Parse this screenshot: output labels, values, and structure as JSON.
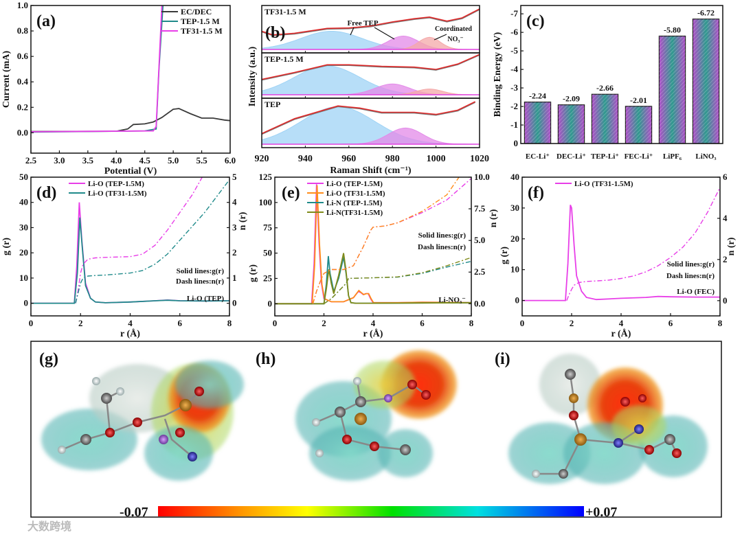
{
  "chart_data": [
    {
      "panel_label": "(a)",
      "type": "line",
      "xlabel": "Potential (V)",
      "ylabel": "Current (mA)",
      "xlim": [
        2.5,
        6.0
      ],
      "ylim": [
        -0.16,
        1.0
      ],
      "xticks": [
        2.5,
        3.0,
        3.5,
        4.0,
        4.5,
        5.0,
        5.5,
        6.0
      ],
      "xtick_labels": [
        "2.5",
        "3.0",
        "3.5",
        "4.0",
        "4.5",
        "5.0",
        "5.5",
        "6.0"
      ],
      "yticks": [
        0,
        0.2,
        0.4,
        0.6,
        0.8,
        1.0
      ],
      "ytick_labels": [
        "0.0",
        "0.2",
        "0.4",
        "0.6",
        "0.8",
        "1.0"
      ],
      "legend_position": "top-right",
      "series": [
        {
          "name": "EC/DEC",
          "color": "#3a3a3a",
          "x": [
            2.5,
            4.0,
            4.2,
            4.3,
            4.5,
            4.65,
            4.8,
            5.0,
            5.1,
            5.3,
            5.5,
            5.7,
            5.9,
            6.0
          ],
          "y": [
            0.01,
            0.012,
            0.03,
            0.065,
            0.07,
            0.085,
            0.12,
            0.185,
            0.19,
            0.15,
            0.115,
            0.115,
            0.1,
            0.095
          ]
        },
        {
          "name": "TEP-1.5 M",
          "color": "#1f8a8a",
          "x": [
            2.5,
            4.5,
            4.7,
            4.75,
            4.82
          ],
          "y": [
            0.005,
            0.015,
            0.03,
            0.5,
            1.0
          ]
        },
        {
          "name": "TF31-1.5 M",
          "color": "#e83ee8",
          "x": [
            2.5,
            4.65,
            4.7,
            4.8
          ],
          "y": [
            0.008,
            0.015,
            0.05,
            1.0
          ]
        }
      ]
    },
    {
      "panel_label": "(b)",
      "type": "area",
      "xlabel": "Raman Shift (cm⁻¹)",
      "ylabel": "Intensity (a.u.)",
      "xlim": [
        920,
        1020
      ],
      "xticks": [
        920,
        940,
        960,
        980,
        1000,
        1020
      ],
      "xtick_labels": [
        "920",
        "940",
        "960",
        "980",
        "1000",
        "1020"
      ],
      "annotations": {
        "free_tep": "Free TEP",
        "coordinated": "Coordinated",
        "no3": "NO₃⁻"
      },
      "panels": [
        {
          "name": "TF31-1.5 M",
          "envelope": {
            "x": [
              920,
              925,
              935,
              950,
              960,
              970,
              980,
              990,
              997,
              1005,
              1012,
              1020
            ],
            "y": [
              0.45,
              0.36,
              0.4,
              0.52,
              0.53,
              0.58,
              0.68,
              0.76,
              0.8,
              0.7,
              0.78,
              1.0
            ]
          },
          "components": [
            {
              "name": "Free TEP",
              "center": 952,
              "sigma": 14,
              "amp": 0.45,
              "color": "#9fd3f5"
            },
            {
              "name": "Free TEP",
              "center": 985,
              "sigma": 7,
              "amp": 0.33,
              "color": "#e38ae8"
            },
            {
              "name": "Coordinated NO3-",
              "center": 997,
              "sigma": 5,
              "amp": 0.3,
              "color": "#f4a8a8"
            }
          ]
        },
        {
          "name": "TEP-1.5 M",
          "envelope": {
            "x": [
              920,
              935,
              950,
              960,
              975,
              990,
              1000,
              1010,
              1020
            ],
            "y": [
              0.4,
              0.58,
              0.78,
              0.78,
              0.74,
              0.72,
              0.66,
              0.8,
              1.05
            ]
          },
          "components": [
            {
              "name": "Free TEP",
              "center": 950,
              "sigma": 15,
              "amp": 0.75,
              "color": "#9fd3f5"
            },
            {
              "name": "Free TEP",
              "center": 980,
              "sigma": 8,
              "amp": 0.28,
              "color": "#e38ae8"
            },
            {
              "name": "Coordinated NO3-",
              "center": 997,
              "sigma": 6,
              "amp": 0.15,
              "color": "#f4a8a8"
            }
          ]
        },
        {
          "name": "TEP",
          "envelope": {
            "x": [
              920,
              935,
              955,
              965,
              975,
              990,
              1000,
              1010,
              1018
            ],
            "y": [
              0.25,
              0.6,
              0.9,
              0.85,
              0.75,
              0.75,
              0.7,
              0.8,
              1.0
            ]
          },
          "components": [
            {
              "name": "Free TEP",
              "center": 955,
              "sigma": 17,
              "amp": 0.88,
              "color": "#9fd3f5"
            },
            {
              "name": "Free TEP",
              "center": 986,
              "sigma": 8,
              "amp": 0.38,
              "color": "#e38ae8"
            }
          ]
        }
      ]
    },
    {
      "panel_label": "(c)",
      "type": "bar",
      "ylabel": "Binding Energy (eV)",
      "ylim": [
        0,
        -7.45
      ],
      "yticks": [
        0,
        -1,
        -2,
        -3,
        -4,
        -5,
        -6,
        -7
      ],
      "ytick_labels": [
        "0",
        "-1",
        "-2",
        "-3",
        "-4",
        "-5",
        "-6",
        "-7"
      ],
      "categories": [
        "EC-Li⁺",
        "DEC-Li⁺",
        "TEP-Li⁺",
        "FEC-Li⁺",
        "LiPF₆",
        "LiNO₃"
      ],
      "values": [
        -2.24,
        -2.09,
        -2.66,
        -2.01,
        -5.8,
        -6.72
      ],
      "value_labels": [
        "-2.24",
        "-2.09",
        "-2.66",
        "-2.01",
        "-5.80",
        "-6.72"
      ],
      "bar_colors": {
        "edge": "#b04fc8",
        "center": "#2f9a8e"
      }
    },
    {
      "panel_label": "(d)",
      "type": "line",
      "xlabel": "r (Å)",
      "ylabel": "g (r)",
      "y2label": "n (r)",
      "xlim": [
        0,
        8
      ],
      "ylim": [
        -5,
        50
      ],
      "y2lim": [
        -0.5,
        5
      ],
      "xticks": [
        0,
        2,
        4,
        6,
        8
      ],
      "xtick_labels": [
        "0",
        "2",
        "4",
        "6",
        "8"
      ],
      "yticks": [
        0,
        10,
        20,
        30,
        40,
        50
      ],
      "ytick_labels": [
        "0",
        "10",
        "20",
        "30",
        "40",
        "50"
      ],
      "y2ticks": [
        0,
        1,
        2,
        3,
        4,
        5
      ],
      "y2tick_labels": [
        "0",
        "1",
        "2",
        "3",
        "4",
        "5"
      ],
      "notes": [
        "Solid lines:g(r)",
        "Dash lines:n(r)",
        "Li-O (TEP)"
      ],
      "legend_position": "top-center",
      "series": [
        {
          "name": "Li-O (TEP-1.5M)",
          "color": "#e83ee8",
          "axis": "left",
          "x": [
            0,
            1.75,
            1.85,
            1.95,
            2.05,
            2.2,
            2.4,
            2.6,
            3,
            4,
            5,
            5.5,
            6,
            7,
            8
          ],
          "y": [
            0,
            0,
            15,
            40,
            25,
            8,
            2,
            0.5,
            0.2,
            0.5,
            1,
            1.3,
            1,
            0.9,
            1
          ]
        },
        {
          "name": "Li-O (TF31-1.5M)",
          "color": "#1f8a8a",
          "axis": "left",
          "x": [
            0,
            1.75,
            1.87,
            1.97,
            2.07,
            2.2,
            2.4,
            2.6,
            3,
            4,
            5,
            5.5,
            6,
            7,
            8
          ],
          "y": [
            0,
            0,
            12,
            34,
            22,
            7,
            2,
            0.5,
            0.2,
            0.5,
            1,
            1.2,
            1,
            0.9,
            1
          ]
        },
        {
          "name": "n Li-O (TEP-1.5M)",
          "legend": false,
          "dash": true,
          "color": "#e83ee8",
          "axis": "right",
          "x": [
            1.8,
            1.9,
            2.0,
            2.1,
            2.3,
            2.6,
            3,
            4,
            4.5,
            5,
            5.5,
            6,
            6.5,
            6.9
          ],
          "y": [
            0,
            0.5,
            1.2,
            1.55,
            1.75,
            1.8,
            1.82,
            1.85,
            1.95,
            2.3,
            2.9,
            3.6,
            4.3,
            5.0
          ]
        },
        {
          "name": "n Li-O (TF31-1.5M)",
          "legend": false,
          "dash": true,
          "color": "#1f8a8a",
          "axis": "right",
          "x": [
            1.8,
            1.9,
            2.0,
            2.1,
            2.3,
            2.6,
            3,
            4,
            4.5,
            5,
            5.5,
            6,
            7,
            8
          ],
          "y": [
            0,
            0.4,
            0.8,
            1.0,
            1.08,
            1.1,
            1.12,
            1.2,
            1.3,
            1.55,
            1.95,
            2.5,
            3.6,
            4.9
          ]
        }
      ]
    },
    {
      "panel_label": "(e)",
      "type": "line",
      "xlabel": "r (Å)",
      "ylabel": "g (r)",
      "y2label": "n (r)",
      "xlim": [
        0,
        8
      ],
      "ylim": [
        -12,
        125
      ],
      "y2lim": [
        -0.96,
        10
      ],
      "xticks": [
        0,
        2,
        4,
        6,
        8
      ],
      "xtick_labels": [
        "0",
        "2",
        "4",
        "6",
        "8"
      ],
      "yticks": [
        0,
        25,
        50,
        75,
        100,
        125
      ],
      "ytick_labels": [
        "0",
        "25",
        "50",
        "75",
        "100",
        "125"
      ],
      "y2ticks": [
        0,
        2.5,
        5,
        7.5,
        10
      ],
      "y2tick_labels": [
        "0.0",
        "2.5",
        "5.0",
        "7.5",
        "10.0"
      ],
      "notes": [
        "Solid lines:g(r)",
        "Dash lines:n(r)",
        "Li-NO₃⁻"
      ],
      "legend_position": "top-center",
      "series": [
        {
          "name": "Li-O (TEP-1.5M)",
          "color": "#e83ee8",
          "axis": "left",
          "x": [
            0,
            1.5,
            1.6,
            1.7,
            1.8,
            1.9,
            2.0,
            2.3,
            2.8,
            3.2,
            3.4,
            3.5,
            3.6,
            3.7,
            3.8,
            3.9,
            4.0,
            5,
            6,
            8
          ],
          "y": [
            0,
            0,
            40,
            118,
            60,
            20,
            5,
            2,
            2,
            6,
            12,
            11,
            9,
            10,
            10,
            5,
            1,
            1,
            1.5,
            1
          ]
        },
        {
          "name": "Li-O (TF31-1.5M)",
          "color": "#ff8c1a",
          "axis": "left",
          "x": [
            0,
            1.52,
            1.62,
            1.72,
            1.82,
            1.92,
            2.02,
            2.3,
            2.8,
            3.2,
            3.42,
            3.52,
            3.62,
            3.72,
            3.82,
            3.92,
            4.02,
            5,
            6,
            8
          ],
          "y": [
            0,
            0,
            38,
            117,
            58,
            19,
            5,
            2,
            2,
            6,
            13,
            11,
            9,
            10,
            10,
            5,
            1,
            1,
            1.5,
            1
          ]
        },
        {
          "name": "Li-N (TEP-1.5M)",
          "color": "#1f8a8a",
          "axis": "left",
          "x": [
            0,
            2.0,
            2.1,
            2.18,
            2.25,
            2.4,
            2.6,
            2.8,
            2.9,
            3.0,
            3.1,
            3.3,
            4,
            8
          ],
          "y": [
            0,
            0,
            20,
            47,
            30,
            12,
            25,
            46,
            30,
            8,
            1,
            0.5,
            0.5,
            1
          ]
        },
        {
          "name": "Li-N(TF31-1.5M)",
          "color": "#7f8a1a",
          "axis": "left",
          "x": [
            0,
            2.0,
            2.1,
            2.2,
            2.3,
            2.4,
            2.6,
            2.8,
            2.9,
            3.0,
            3.1,
            3.3,
            4,
            8
          ],
          "y": [
            0,
            0,
            15,
            34,
            20,
            10,
            28,
            50,
            32,
            8,
            1,
            0.5,
            0.5,
            1
          ]
        },
        {
          "name": "n Li-O (TEP-1.5M)",
          "legend": false,
          "dash": true,
          "color": "#e83ee8",
          "axis": "right",
          "x": [
            1.55,
            1.7,
            1.9,
            2.0,
            2.3,
            2.8,
            3.2,
            3.6,
            3.9,
            4.0,
            4.5,
            5,
            6,
            7,
            8
          ],
          "y": [
            0,
            1,
            2,
            2.4,
            2.7,
            2.7,
            3.0,
            4.5,
            5.8,
            6.05,
            6.15,
            6.4,
            7.2,
            8.2,
            9.9
          ]
        },
        {
          "name": "n Li-O (TF31-1.5M)",
          "legend": false,
          "dash": true,
          "color": "#ff8c1a",
          "axis": "right",
          "x": [
            1.55,
            1.7,
            1.9,
            2.0,
            2.3,
            2.8,
            3.2,
            3.6,
            3.9,
            4.0,
            4.5,
            5,
            6,
            7,
            7.5
          ],
          "y": [
            0,
            1,
            2,
            2.4,
            2.7,
            2.7,
            3.0,
            4.5,
            5.8,
            6.05,
            6.15,
            6.4,
            7.3,
            8.6,
            10.0
          ]
        },
        {
          "name": "n Li-N (TEP-1.5M)",
          "legend": false,
          "dash": true,
          "color": "#1f8a8a",
          "axis": "right",
          "x": [
            2.0,
            2.3,
            2.6,
            2.9,
            3.0,
            4,
            5,
            6,
            7,
            8
          ],
          "y": [
            0,
            0.4,
            1,
            1.6,
            2.0,
            2.05,
            2.1,
            2.4,
            2.9,
            3.35
          ]
        },
        {
          "name": "n Li-N (TF31-1.5M)",
          "legend": false,
          "dash": true,
          "color": "#7f8a1a",
          "axis": "right",
          "x": [
            2.0,
            2.3,
            2.6,
            2.9,
            3.0,
            4,
            5,
            6,
            7,
            8
          ],
          "y": [
            0,
            0.4,
            1,
            1.6,
            2.0,
            2.05,
            2.12,
            2.45,
            3.0,
            3.65
          ]
        }
      ]
    },
    {
      "panel_label": "(f)",
      "type": "line",
      "xlabel": "r (Å)",
      "ylabel": "g (r)",
      "y2label": "n (r)",
      "xlim": [
        0,
        8
      ],
      "ylim": [
        -5,
        40
      ],
      "y2lim": [
        -0.74,
        6
      ],
      "xticks": [
        0,
        2,
        4,
        6,
        8
      ],
      "xtick_labels": [
        "0",
        "2",
        "4",
        "6",
        "8"
      ],
      "yticks": [
        0,
        10,
        20,
        30,
        40
      ],
      "ytick_labels": [
        "0",
        "10",
        "20",
        "30",
        "40"
      ],
      "y2ticks": [
        0,
        2,
        4,
        6
      ],
      "y2tick_labels": [
        "0",
        "2",
        "4",
        "6"
      ],
      "notes": [
        "Solid lines:g(r)",
        "Dash lines:n(r)",
        "Li-O (FEC)"
      ],
      "legend_position": "top-center",
      "series": [
        {
          "name": "Li-O (TF31-1.5M)",
          "color": "#e83ee8",
          "axis": "left",
          "x": [
            0,
            1.75,
            1.85,
            1.95,
            2.0,
            2.1,
            2.2,
            2.4,
            2.6,
            3,
            4,
            5,
            5.5,
            6,
            7,
            8
          ],
          "y": [
            0,
            0,
            12,
            31,
            30,
            18,
            8,
            3,
            1,
            0.3,
            0.7,
            1,
            1.3,
            1.2,
            1.1,
            1.1
          ]
        },
        {
          "name": "n Li-O (TF31-1.5M)",
          "legend": false,
          "dash": true,
          "color": "#e83ee8",
          "axis": "right",
          "x": [
            1.8,
            1.9,
            2.0,
            2.1,
            2.3,
            2.6,
            3,
            3.5,
            4,
            4.5,
            5,
            5.5,
            6,
            6.5,
            7,
            7.5,
            8
          ],
          "y": [
            0,
            0.3,
            0.55,
            0.75,
            0.88,
            0.93,
            0.96,
            1.0,
            1.08,
            1.2,
            1.4,
            1.7,
            2.1,
            2.6,
            3.3,
            4.3,
            5.5
          ]
        }
      ]
    }
  ],
  "esp_maps": {
    "panel_labels": [
      "(g)",
      "(h)",
      "(i)"
    ],
    "colorbar": {
      "min_label": "-0.07",
      "max_label": "+0.07"
    }
  },
  "watermark": "大数跨境"
}
